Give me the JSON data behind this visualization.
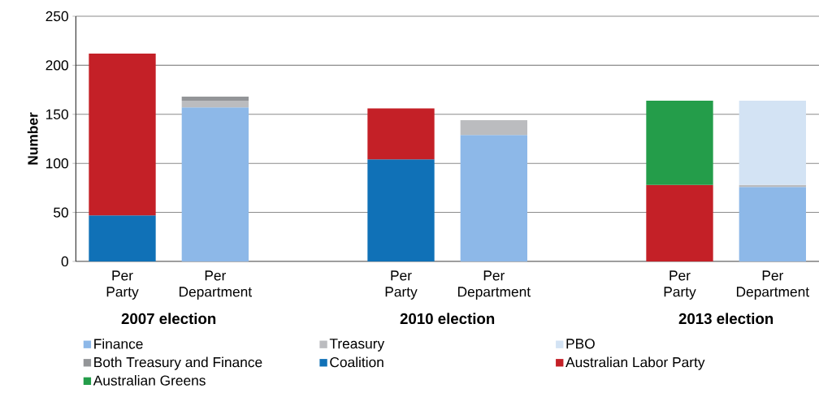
{
  "chart_data": {
    "type": "bar",
    "stacked": true,
    "ylabel": "Number",
    "categories": [
      "Per Party",
      "Per Department",
      null,
      "Per Party",
      "Per Department",
      null,
      "Per Party",
      "Per Department"
    ],
    "series": [
      {
        "name": "Finance",
        "color": "#8db8e8",
        "values": [
          null,
          157,
          null,
          null,
          129,
          null,
          null,
          76
        ]
      },
      {
        "name": "Treasury",
        "color": "#bbbcbf",
        "values": [
          null,
          7,
          null,
          null,
          15,
          null,
          null,
          2
        ]
      },
      {
        "name": "PBO",
        "color": "#d3e3f4",
        "values": [
          null,
          null,
          null,
          null,
          null,
          null,
          null,
          86
        ]
      },
      {
        "name": "Both Treasury and Finance",
        "color": "#939598",
        "values": [
          null,
          4,
          null,
          null,
          null,
          null,
          null,
          null
        ]
      },
      {
        "name": "Coalition",
        "color": "#1071b7",
        "values": [
          47,
          null,
          null,
          104,
          null,
          null,
          null,
          null
        ]
      },
      {
        "name": "Australian Labor Party",
        "color": "#c42027",
        "values": [
          165,
          null,
          null,
          52,
          null,
          null,
          78,
          null
        ]
      },
      {
        "name": "Australian Greens",
        "color": "#249d4a",
        "values": [
          null,
          null,
          null,
          null,
          null,
          null,
          86,
          null
        ]
      }
    ],
    "annotations": [
      "2007 election",
      "2010 election",
      "2013 election"
    ],
    "ylim": [
      0,
      250
    ],
    "yticks": [
      0,
      50,
      100,
      150,
      200,
      250
    ],
    "grid": "y",
    "legend": "bottom"
  }
}
